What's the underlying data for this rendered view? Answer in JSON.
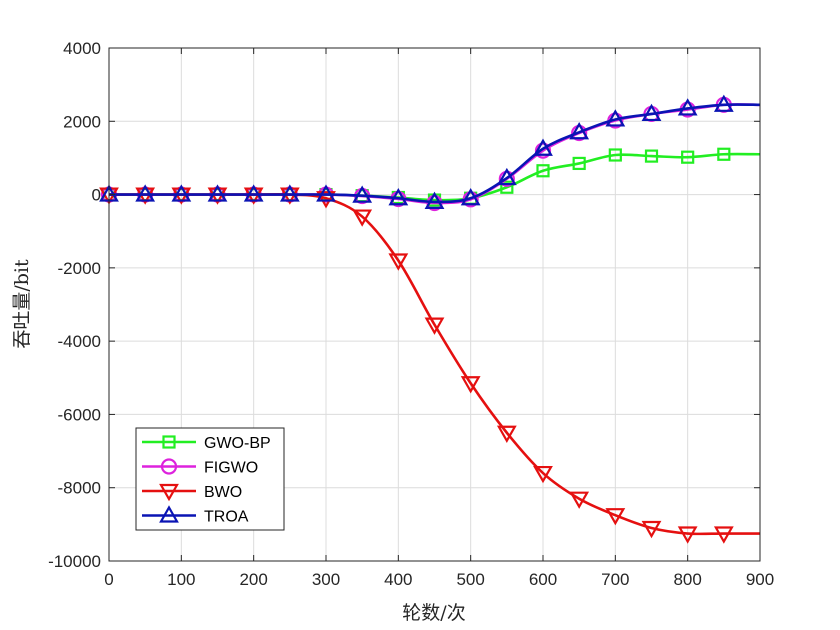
{
  "chart_data": {
    "type": "line",
    "title": "",
    "xlabel": "轮数/次",
    "ylabel": "吞吐量/bit",
    "xlim": [
      0,
      900
    ],
    "ylim": [
      -10000,
      4000
    ],
    "xticks": [
      0,
      100,
      200,
      300,
      400,
      500,
      600,
      700,
      800,
      900
    ],
    "yticks": [
      -10000,
      -8000,
      -6000,
      -4000,
      -2000,
      0,
      2000,
      4000
    ],
    "grid": true,
    "legend_position": "bottom-left",
    "marker_x": [
      0,
      50,
      100,
      150,
      200,
      250,
      300,
      350,
      400,
      450,
      500,
      550,
      600,
      650,
      700,
      750,
      800,
      850
    ],
    "series": [
      {
        "name": "GWO-BP",
        "color": "#22ee22",
        "marker": "square",
        "line_end_x": 900,
        "values": [
          0,
          0,
          0,
          0,
          0,
          0,
          0,
          -30,
          -80,
          -150,
          -100,
          200,
          650,
          850,
          1080,
          1050,
          1020,
          1100
        ]
      },
      {
        "name": "FIGWO",
        "color": "#dd22dd",
        "marker": "circle",
        "line_end_x": 900,
        "values": [
          0,
          0,
          0,
          0,
          0,
          0,
          0,
          -40,
          -120,
          -230,
          -130,
          430,
          1200,
          1680,
          2020,
          2200,
          2320,
          2450
        ]
      },
      {
        "name": "BWO",
        "color": "#e51010",
        "marker": "triangle-down",
        "line_end_x": 900,
        "values": [
          0,
          0,
          0,
          0,
          0,
          0,
          -100,
          -600,
          -1800,
          -3550,
          -5150,
          -6500,
          -7600,
          -8300,
          -8750,
          -9100,
          -9250,
          -9250
        ]
      },
      {
        "name": "TROA",
        "color": "#0a14b4",
        "marker": "triangle-up",
        "line_end_x": 900,
        "values": [
          0,
          0,
          0,
          0,
          0,
          0,
          0,
          -30,
          -100,
          -200,
          -100,
          450,
          1250,
          1700,
          2050,
          2200,
          2350,
          2450
        ]
      }
    ]
  }
}
